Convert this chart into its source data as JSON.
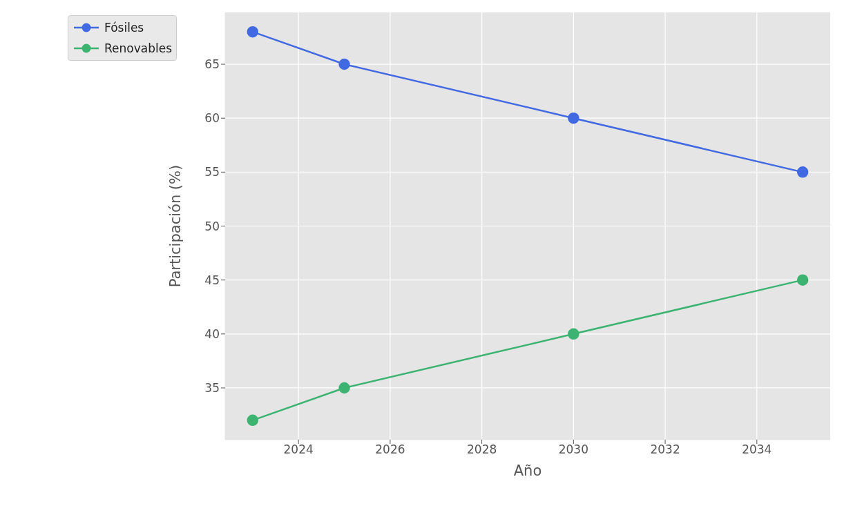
{
  "chart_data": {
    "type": "line",
    "xlabel": "Año",
    "ylabel": "Participación (%)",
    "x": [
      2023,
      2025,
      2030,
      2035
    ],
    "series": [
      {
        "name": "Fósiles",
        "color": "#4169e1",
        "values": [
          68,
          65,
          60,
          55
        ]
      },
      {
        "name": "Renovables",
        "color": "#3cb371",
        "values": [
          32,
          35,
          40,
          45
        ]
      }
    ],
    "xlim": [
      2022.4,
      2035.6
    ],
    "xticks": [
      2024,
      2026,
      2028,
      2030,
      2032,
      2034
    ],
    "ylim": [
      30.2,
      69.8
    ],
    "yticks": [
      35,
      40,
      45,
      50,
      55,
      60,
      65
    ],
    "grid": true,
    "legend": "top left",
    "marker": "circle",
    "line_style": "solid"
  }
}
